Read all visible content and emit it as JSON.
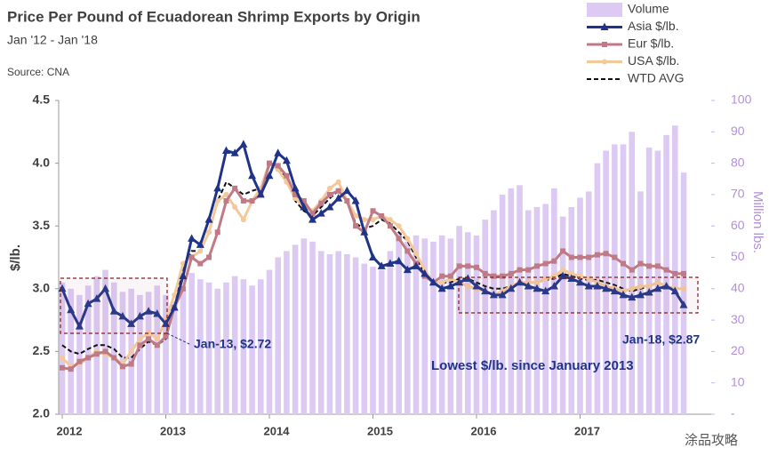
{
  "chart_data": {
    "type": "bar-line",
    "title": "Price Per Pound of Ecuadorean Shrimp Exports by Origin",
    "subtitle": "Jan '12 - Jan '18",
    "source": "Source: CNA",
    "y_label": "$/lb.",
    "y2_label": "Million lbs.",
    "categories": [
      "2012",
      null,
      null,
      null,
      null,
      null,
      null,
      null,
      null,
      null,
      null,
      null,
      "2013",
      null,
      null,
      null,
      null,
      null,
      null,
      null,
      null,
      null,
      null,
      null,
      "2014",
      null,
      null,
      null,
      null,
      null,
      null,
      null,
      null,
      null,
      null,
      null,
      "2015",
      null,
      null,
      null,
      null,
      null,
      null,
      null,
      null,
      null,
      null,
      null,
      "2016",
      null,
      null,
      null,
      null,
      null,
      null,
      null,
      null,
      null,
      null,
      null,
      "2017",
      null,
      null,
      null,
      null,
      null,
      null,
      null,
      null,
      null,
      null,
      null,
      null
    ],
    "ylim": [
      2.0,
      4.5
    ],
    "yticks": [
      {
        "value": 2,
        "label": "2.0"
      },
      2.5,
      {
        "value": 3,
        "label": "3.0"
      },
      3.5,
      {
        "value": 4,
        "label": "4.0"
      },
      4.5
    ],
    "y2lim": [
      0,
      100
    ],
    "y2ticks": [
      {
        "value": 0,
        "label": "-"
      },
      10,
      20,
      30,
      40,
      50,
      60,
      70,
      80,
      90,
      100
    ],
    "legend": "top-right",
    "series": [
      {
        "name": "Volume",
        "type": "bar",
        "axis": "y2",
        "color": "#dccaf3",
        "values": [
          42,
          40,
          38,
          41,
          44,
          46,
          42,
          39,
          40,
          38,
          39,
          41,
          38,
          36,
          40,
          45,
          43,
          42,
          40,
          42,
          44,
          43,
          41,
          43,
          46,
          50,
          52,
          54,
          56,
          55,
          52,
          51,
          52,
          51,
          50,
          48,
          47,
          46,
          52,
          58,
          55,
          57,
          56,
          55,
          57,
          56,
          60,
          58,
          57,
          62,
          65,
          70,
          72,
          73,
          65,
          66,
          67,
          72,
          63,
          66,
          69,
          71,
          80,
          84,
          86,
          86,
          90,
          71,
          85,
          84,
          89,
          92,
          77
        ]
      },
      {
        "name": "Asia $/lb.",
        "type": "line",
        "marker": "triangle",
        "color": "#1f3489",
        "values": [
          3.0,
          2.83,
          2.7,
          2.88,
          2.92,
          3.0,
          2.82,
          2.78,
          2.72,
          2.78,
          2.82,
          2.8,
          2.72,
          2.85,
          3.1,
          3.4,
          3.35,
          3.55,
          3.8,
          4.1,
          4.08,
          4.15,
          3.9,
          3.75,
          3.9,
          4.08,
          4.02,
          3.8,
          3.65,
          3.55,
          3.6,
          3.65,
          3.72,
          3.78,
          3.7,
          3.45,
          3.25,
          3.18,
          3.2,
          3.22,
          3.15,
          3.18,
          3.12,
          3.05,
          3.0,
          3.02,
          3.05,
          3.08,
          3.02,
          2.98,
          2.95,
          2.95,
          3.0,
          3.05,
          3.02,
          3.0,
          2.98,
          3.02,
          3.1,
          3.08,
          3.05,
          3.02,
          3.02,
          3.0,
          2.98,
          2.95,
          2.93,
          2.95,
          2.97,
          3.0,
          3.02,
          2.98,
          2.87
        ]
      },
      {
        "name": "Eur $/lb.",
        "type": "line",
        "marker": "square",
        "color": "#c07a86",
        "values": [
          2.37,
          2.36,
          2.42,
          2.45,
          2.48,
          2.5,
          2.45,
          2.38,
          2.4,
          2.55,
          2.6,
          2.55,
          2.62,
          2.85,
          3.0,
          3.25,
          3.2,
          3.25,
          3.45,
          3.7,
          3.8,
          3.7,
          3.7,
          3.75,
          4.0,
          3.98,
          3.9,
          3.75,
          3.7,
          3.6,
          3.68,
          3.75,
          3.78,
          3.7,
          3.5,
          3.45,
          3.62,
          3.58,
          3.5,
          3.4,
          3.3,
          3.2,
          3.1,
          3.05,
          3.1,
          3.1,
          3.18,
          3.18,
          3.17,
          3.12,
          3.1,
          3.1,
          3.12,
          3.15,
          3.15,
          3.18,
          3.2,
          3.22,
          3.3,
          3.25,
          3.25,
          3.25,
          3.27,
          3.28,
          3.25,
          3.2,
          3.15,
          3.2,
          3.18,
          3.18,
          3.15,
          3.12,
          3.12
        ]
      },
      {
        "name": "USA $/lb.",
        "type": "line",
        "marker": "circle",
        "color": "#f3c89a",
        "values": [
          2.45,
          2.38,
          2.4,
          2.45,
          2.5,
          2.48,
          2.45,
          2.4,
          2.5,
          2.6,
          2.65,
          2.6,
          2.75,
          2.95,
          3.2,
          3.25,
          3.3,
          3.45,
          3.7,
          3.75,
          3.65,
          3.55,
          3.7,
          3.8,
          4.0,
          3.95,
          3.85,
          3.72,
          3.65,
          3.62,
          3.7,
          3.8,
          3.85,
          3.7,
          3.58,
          3.55,
          3.55,
          3.58,
          3.55,
          3.5,
          3.4,
          3.28,
          3.15,
          3.05,
          3.05,
          3.08,
          3.05,
          3.02,
          3.0,
          2.98,
          2.95,
          2.98,
          3.02,
          3.05,
          3.05,
          3.05,
          3.08,
          3.1,
          3.15,
          3.12,
          3.1,
          3.08,
          3.05,
          3.02,
          3.0,
          2.98,
          3.0,
          3.02,
          3.02,
          3.05,
          3.02,
          3.0,
          3.0
        ]
      },
      {
        "name": "WTD AVG",
        "type": "line",
        "marker": "none",
        "dash": true,
        "color": "#111111",
        "values": [
          2.55,
          2.5,
          2.48,
          2.52,
          2.55,
          2.55,
          2.52,
          2.45,
          2.45,
          2.52,
          2.58,
          2.55,
          2.6,
          2.85,
          3.15,
          3.3,
          3.3,
          3.45,
          3.7,
          3.85,
          3.8,
          3.75,
          3.78,
          3.8,
          3.98,
          3.97,
          3.88,
          3.7,
          3.62,
          3.58,
          3.65,
          3.72,
          3.78,
          3.7,
          3.52,
          3.48,
          3.5,
          3.55,
          3.52,
          3.45,
          3.38,
          3.25,
          3.12,
          3.05,
          3.05,
          3.05,
          3.08,
          3.08,
          3.05,
          3.02,
          3.0,
          3.0,
          3.02,
          3.05,
          3.05,
          3.05,
          3.07,
          3.08,
          3.12,
          3.1,
          3.08,
          3.07,
          3.07,
          3.05,
          3.03,
          3.0,
          2.98,
          3.0,
          3.02,
          3.05,
          3.02,
          3.0,
          3.0
        ]
      }
    ],
    "annotations": [
      "Jan-13,  $2.72",
      "Jan-18,  $2.87",
      "Lowest $/lb. since January 2013"
    ],
    "watermark": "涂品攻略"
  }
}
